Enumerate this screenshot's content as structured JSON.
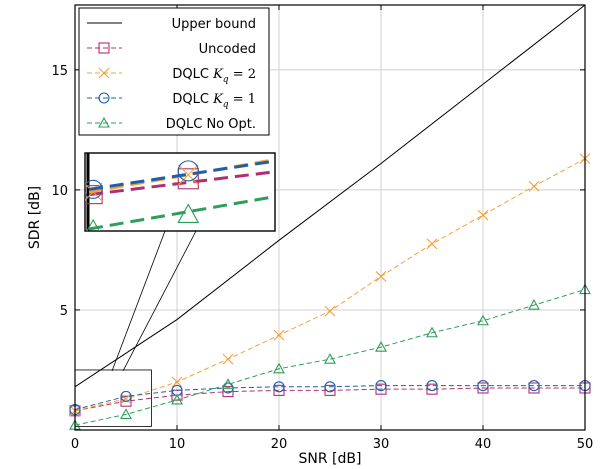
{
  "chart_data": {
    "type": "line",
    "xlabel": "SNR [dB]",
    "ylabel": "SDR [dB]",
    "xlim": [
      0,
      50
    ],
    "ylim": [
      0,
      17.7
    ],
    "x_ticks": [
      0,
      10,
      20,
      30,
      40,
      50
    ],
    "y_ticks": [
      5,
      10,
      15
    ],
    "grid": true,
    "legend_position": "top-left",
    "series": [
      {
        "name": "Upper bound",
        "color": "#000000",
        "dash": "solid",
        "marker": "none",
        "x": [
          0,
          10,
          20,
          30,
          40,
          50
        ],
        "y": [
          1.8,
          4.6,
          7.9,
          11.1,
          14.4,
          17.7
        ]
      },
      {
        "name": "Uncoded",
        "color": "#b0306f",
        "dash": "dashed",
        "marker": "square",
        "x": [
          0,
          5,
          10,
          15,
          20,
          25,
          30,
          35,
          40,
          45,
          50
        ],
        "y": [
          0.8,
          1.2,
          1.45,
          1.6,
          1.65,
          1.65,
          1.7,
          1.7,
          1.75,
          1.75,
          1.75
        ]
      },
      {
        "name": "DQLC K_q = 2",
        "color": "#f5a03a",
        "dash": "dashed",
        "marker": "x",
        "x": [
          0,
          5,
          10,
          15,
          20,
          25,
          30,
          35,
          40,
          45,
          50
        ],
        "y": [
          0.8,
          1.3,
          2.0,
          2.95,
          3.95,
          4.95,
          6.4,
          7.75,
          8.95,
          10.15,
          11.3
        ]
      },
      {
        "name": "DQLC K_q = 1",
        "color": "#1f5faa",
        "dash": "dashed",
        "marker": "circle",
        "x": [
          0,
          5,
          10,
          15,
          20,
          25,
          30,
          35,
          40,
          45,
          50
        ],
        "y": [
          0.85,
          1.4,
          1.65,
          1.75,
          1.8,
          1.8,
          1.85,
          1.85,
          1.85,
          1.85,
          1.85
        ]
      },
      {
        "name": "DQLC No Opt.",
        "color": "#2e9e5c",
        "dash": "dashed",
        "marker": "triangle",
        "x": [
          0,
          5,
          10,
          15,
          20,
          25,
          30,
          35,
          40,
          45,
          50
        ],
        "y": [
          0.2,
          0.65,
          1.25,
          1.9,
          2.55,
          2.95,
          3.45,
          4.05,
          4.55,
          5.2,
          5.85
        ]
      }
    ],
    "legend": [
      {
        "label": "Upper bound",
        "sub": ""
      },
      {
        "label": "Uncoded",
        "sub": ""
      },
      {
        "label": "DQLC K",
        "sub": "q",
        "suffix": " = 2"
      },
      {
        "label": "DQLC K",
        "sub": "q",
        "suffix": " = 1"
      },
      {
        "label": "DQLC No Opt.",
        "sub": ""
      }
    ]
  }
}
